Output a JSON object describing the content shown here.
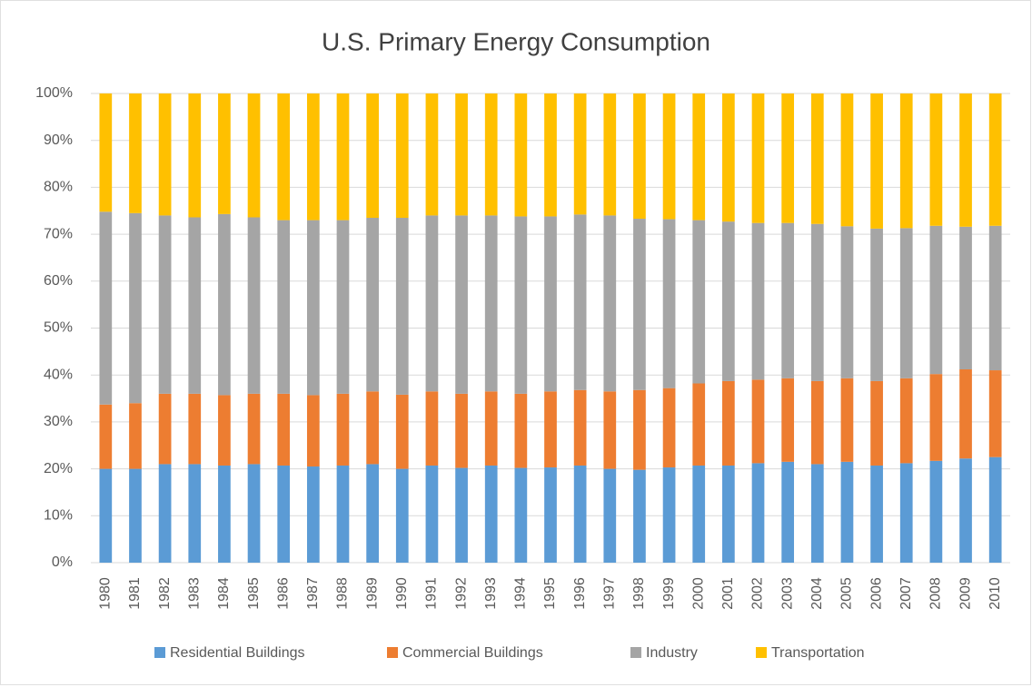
{
  "chart_data": {
    "type": "stacked_bar_100",
    "title": "U.S. Primary Energy Consumption",
    "categories": [
      "1980",
      "1981",
      "1982",
      "1983",
      "1984",
      "1985",
      "1986",
      "1987",
      "1988",
      "1989",
      "1990",
      "1991",
      "1992",
      "1993",
      "1994",
      "1995",
      "1996",
      "1997",
      "1998",
      "1999",
      "2000",
      "2001",
      "2002",
      "2003",
      "2004",
      "2005",
      "2006",
      "2007",
      "2008",
      "2009",
      "2010"
    ],
    "series": [
      {
        "name": "Residential Buildings",
        "color": "#5b9bd5",
        "values": [
          20,
          20,
          21,
          21,
          20.7,
          21,
          20.7,
          20.5,
          20.7,
          21,
          20,
          20.7,
          20.2,
          20.7,
          20.2,
          20.3,
          20.7,
          20,
          19.8,
          20.3,
          20.7,
          20.7,
          21.2,
          21.5,
          21,
          21.5,
          20.7,
          21.2,
          21.7,
          22.2,
          22.5
        ]
      },
      {
        "name": "Commercial Buildings",
        "color": "#ed7d31",
        "values": [
          13.7,
          14,
          15,
          15,
          15,
          15,
          15.3,
          15.2,
          15.3,
          15.5,
          15.8,
          15.8,
          15.8,
          15.8,
          15.8,
          16.2,
          16.1,
          16.5,
          17,
          16.9,
          17.5,
          18,
          17.8,
          17.8,
          17.7,
          17.8,
          18,
          18.1,
          18.5,
          19,
          18.5
        ]
      },
      {
        "name": "Industry",
        "color": "#a5a5a5",
        "values": [
          41.1,
          40.5,
          38,
          37.6,
          38.6,
          37.6,
          37,
          37.3,
          37,
          37,
          37.7,
          37.5,
          38,
          37.5,
          37.8,
          37.3,
          37.4,
          37.5,
          36.5,
          36,
          34.8,
          34,
          33.4,
          33.1,
          33.5,
          32.4,
          32.5,
          32,
          31.6,
          30.4,
          30.8
        ]
      },
      {
        "name": "Transportation",
        "color": "#ffc000",
        "values": [
          25.2,
          25.5,
          26,
          26.4,
          25.7,
          26.4,
          27,
          27,
          27,
          26.5,
          26.5,
          26,
          26,
          26,
          26.2,
          26.2,
          25.8,
          26,
          26.7,
          26.8,
          27,
          27.3,
          27.6,
          27.6,
          27.8,
          28.3,
          28.8,
          28.7,
          28.2,
          28.4,
          28.2
        ]
      }
    ],
    "ylim": [
      0,
      100
    ],
    "yticks": [
      {
        "value": 0,
        "label": "0%"
      },
      {
        "value": 10,
        "label": "10%"
      },
      {
        "value": 20,
        "label": "20%"
      },
      {
        "value": 30,
        "label": "30%"
      },
      {
        "value": 40,
        "label": "40%"
      },
      {
        "value": 50,
        "label": "50%"
      },
      {
        "value": 60,
        "label": "60%"
      },
      {
        "value": 70,
        "label": "70%"
      },
      {
        "value": 80,
        "label": "80%"
      },
      {
        "value": 90,
        "label": "90%"
      },
      {
        "value": 100,
        "label": "100%"
      }
    ],
    "grid": true,
    "legend": "bottom"
  }
}
